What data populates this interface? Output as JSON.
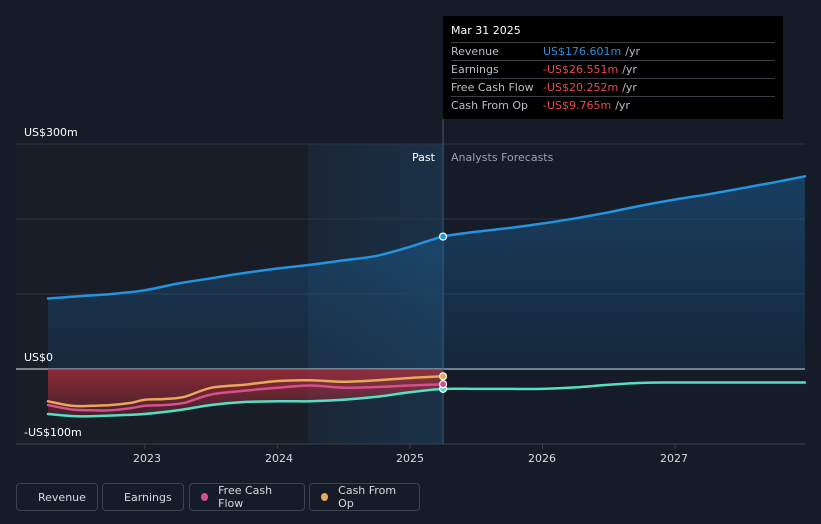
{
  "tooltip": {
    "date": "Mar 31 2025",
    "rows": [
      {
        "label": "Revenue",
        "value": "US$176.601m",
        "unit": "/yr",
        "color": "#2b8fe0"
      },
      {
        "label": "Earnings",
        "value": "-US$26.551m",
        "unit": "/yr",
        "color": "#e8484e"
      },
      {
        "label": "Free Cash Flow",
        "value": "-US$20.252m",
        "unit": "/yr",
        "color": "#e8484e"
      },
      {
        "label": "Cash From Op",
        "value": "-US$9.765m",
        "unit": "/yr",
        "color": "#e8484e"
      }
    ]
  },
  "labels": {
    "past": "Past",
    "forecast": "Analysts Forecasts"
  },
  "legend": [
    {
      "label": "Revenue",
      "color": "#2394df"
    },
    {
      "label": "Earnings",
      "color": "#55e0c6"
    },
    {
      "label": "Free Cash Flow",
      "color": "#d6508c"
    },
    {
      "label": "Cash From Op",
      "color": "#e9a75a"
    }
  ],
  "chart_data": {
    "type": "line",
    "y_unit": "US$m",
    "ylim": [
      -100,
      300
    ],
    "y_ticks": [
      {
        "value": 300,
        "label": "US$300m"
      },
      {
        "value": 0,
        "label": "US$0"
      },
      {
        "value": -100,
        "label": "-US$100m"
      }
    ],
    "x_ticks": [
      "2023",
      "2024",
      "2025",
      "2026",
      "2027"
    ],
    "xlim": [
      2022.27,
      2027.98
    ],
    "past_end": 2025.25,
    "highlight_start": 2024.23,
    "series": [
      {
        "name": "Revenue",
        "color": "#2394df",
        "fill": true,
        "x": [
          2022.25,
          2022.5,
          2022.75,
          2023.0,
          2023.25,
          2023.5,
          2023.75,
          2024.0,
          2024.25,
          2024.5,
          2024.75,
          2025.0,
          2025.25,
          2025.5,
          2025.75,
          2026.0,
          2026.25,
          2026.5,
          2026.75,
          2027.0,
          2027.25,
          2027.5,
          2027.75,
          2028.0
        ],
        "values": [
          94,
          97,
          100,
          105,
          114,
          121,
          128,
          134,
          139,
          145,
          151,
          163,
          176.6,
          183,
          188,
          194,
          201,
          209,
          218,
          226,
          233,
          241,
          249,
          257
        ]
      },
      {
        "name": "Cash From Op",
        "color": "#e9a75a",
        "x": [
          2022.25,
          2022.45,
          2022.6,
          2022.75,
          2022.9,
          2023.0,
          2023.15,
          2023.3,
          2023.5,
          2023.75,
          2024.0,
          2024.25,
          2024.5,
          2024.75,
          2025.0,
          2025.25
        ],
        "values": [
          -43,
          -49,
          -49,
          -48,
          -45,
          -41,
          -40,
          -37,
          -25,
          -21,
          -16,
          -15,
          -17,
          -15,
          -12,
          -9.765
        ]
      },
      {
        "name": "Free Cash Flow",
        "color": "#d6508c",
        "x": [
          2022.25,
          2022.45,
          2022.6,
          2022.75,
          2022.9,
          2023.0,
          2023.15,
          2023.3,
          2023.5,
          2023.75,
          2024.0,
          2024.25,
          2024.5,
          2024.75,
          2025.0,
          2025.25
        ],
        "values": [
          -48,
          -54,
          -55,
          -55,
          -52,
          -49,
          -48,
          -45,
          -34,
          -29,
          -25,
          -22,
          -25,
          -24,
          -22,
          -20.252
        ]
      },
      {
        "name": "Earnings",
        "color": "#55e0c6",
        "x": [
          2022.25,
          2022.5,
          2022.75,
          2023.0,
          2023.25,
          2023.5,
          2023.75,
          2024.0,
          2024.25,
          2024.5,
          2024.75,
          2025.0,
          2025.25,
          2025.5,
          2025.75,
          2026.0,
          2026.25,
          2026.5,
          2026.75,
          2027.0,
          2027.5,
          2028.0
        ],
        "values": [
          -60,
          -63,
          -62,
          -60,
          -55,
          -48,
          -44,
          -43,
          -43,
          -41,
          -37,
          -31,
          -26.551,
          -26.5,
          -26.5,
          -26.5,
          -24.5,
          -21,
          -18.5,
          -18,
          -18,
          -18
        ]
      }
    ]
  }
}
